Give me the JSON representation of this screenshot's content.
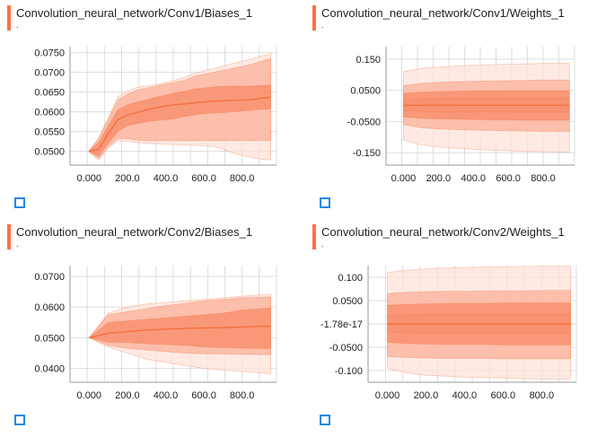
{
  "colors": {
    "accent": "#ff7043",
    "band_light": "#fde3da",
    "band_mid": "#fbb49e",
    "band_dark": "#f7916f",
    "median": "#f4703f",
    "grid": "#dddddd",
    "expand_icon": "#1e88e5"
  },
  "panels": [
    {
      "title": "Convolution_neural_network/Conv1/Biases_1",
      "subtitle": ".",
      "expand_icon": "fullscreen-icon",
      "x_ticks": [
        "0.000",
        "200.0",
        "400.0",
        "600.0",
        "800.0"
      ],
      "y_ticks": [
        "0.0750",
        "0.0700",
        "0.0650",
        "0.0600",
        "0.0550",
        "0.0500"
      ],
      "x_tick_values": [
        0,
        200,
        400,
        600,
        800
      ],
      "y_tick_values": [
        0.075,
        0.07,
        0.065,
        0.06,
        0.055,
        0.05
      ]
    },
    {
      "title": "Convolution_neural_network/Conv1/Weights_1",
      "subtitle": ".",
      "expand_icon": "fullscreen-icon",
      "x_ticks": [
        "0.000",
        "200.0",
        "400.0",
        "600.0",
        "800.0"
      ],
      "y_ticks": [
        "0.150",
        "0.0500",
        "-0.0500",
        "-0.150"
      ],
      "x_tick_values": [
        0,
        200,
        400,
        600,
        800
      ],
      "y_tick_values": [
        0.15,
        0.05,
        -0.05,
        -0.15
      ]
    },
    {
      "title": "Convolution_neural_network/Conv2/Biases_1",
      "subtitle": ".",
      "expand_icon": "fullscreen-icon",
      "x_ticks": [
        "0.000",
        "200.0",
        "400.0",
        "600.0",
        "800.0"
      ],
      "y_ticks": [
        "0.0700",
        "0.0600",
        "0.0500",
        "0.0400"
      ],
      "x_tick_values": [
        0,
        200,
        400,
        600,
        800
      ],
      "y_tick_values": [
        0.07,
        0.06,
        0.05,
        0.04
      ]
    },
    {
      "title": "Convolution_neural_network/Conv2/Weights_1",
      "subtitle": ".",
      "expand_icon": "fullscreen-icon",
      "x_ticks": [
        "0.000",
        "200.0",
        "400.0",
        "600.0",
        "800.0"
      ],
      "y_ticks": [
        "0.100",
        "0.0500",
        "-1.78e-17",
        "-0.0500",
        "-0.100"
      ],
      "x_tick_values": [
        0,
        200,
        400,
        600,
        800
      ],
      "y_tick_values": [
        0.1,
        0.05,
        0,
        -0.05,
        -0.1
      ]
    }
  ],
  "chart_data": [
    {
      "type": "area",
      "title": "Convolution_neural_network/Conv1/Biases_1",
      "x": [
        0,
        50,
        100,
        150,
        200,
        250,
        300,
        350,
        400,
        450,
        500,
        550,
        600,
        650,
        700,
        750,
        800,
        850,
        900,
        950
      ],
      "ylim": [
        0.0465,
        0.0765
      ],
      "xlim": [
        -100,
        980
      ],
      "bands": [
        {
          "name": "",
          "lower": [
            0.0498,
            0.0478,
            0.0508,
            0.0527,
            0.0525,
            0.0522,
            0.052,
            0.0519,
            0.0518,
            0.0517,
            0.0516,
            0.0515,
            0.0514,
            0.0512,
            0.0505,
            0.0496,
            0.0489,
            0.0484,
            0.048,
            0.0478
          ],
          "upper": [
            0.0502,
            0.0535,
            0.0585,
            0.0638,
            0.0653,
            0.0662,
            0.0666,
            0.0669,
            0.0675,
            0.068,
            0.0688,
            0.0697,
            0.0703,
            0.071,
            0.0716,
            0.0722,
            0.0728,
            0.0734,
            0.0741,
            0.0748
          ]
        },
        {
          "name": "",
          "lower": [
            0.0499,
            0.0482,
            0.0512,
            0.0532,
            0.0532,
            0.0528,
            0.0527,
            0.0527,
            0.0527,
            0.0527,
            0.0527,
            0.0527,
            0.0527,
            0.0527,
            0.0527,
            0.0527,
            0.0527,
            0.0527,
            0.0527,
            0.0527
          ],
          "upper": [
            0.0501,
            0.053,
            0.058,
            0.063,
            0.0645,
            0.0655,
            0.066,
            0.0665,
            0.067,
            0.0675,
            0.068,
            0.069,
            0.0695,
            0.07,
            0.0705,
            0.071,
            0.0715,
            0.072,
            0.0728,
            0.0735
          ]
        },
        {
          "name": "",
          "lower": [
            0.0499,
            0.0488,
            0.052,
            0.055,
            0.0565,
            0.057,
            0.0575,
            0.0578,
            0.058,
            0.0583,
            0.0588,
            0.0592,
            0.0595,
            0.0597,
            0.0598,
            0.06,
            0.0602,
            0.0604,
            0.0606,
            0.0608
          ],
          "upper": [
            0.0501,
            0.0522,
            0.0565,
            0.0605,
            0.0618,
            0.0625,
            0.063,
            0.0637,
            0.0642,
            0.0648,
            0.0652,
            0.0658,
            0.066,
            0.0663,
            0.0665,
            0.0665,
            0.0665,
            0.0665,
            0.0667,
            0.0668
          ]
        }
      ],
      "median": [
        0.05,
        0.0505,
        0.0545,
        0.058,
        0.0592,
        0.0598,
        0.0605,
        0.061,
        0.0615,
        0.0618,
        0.062,
        0.0623,
        0.0625,
        0.0627,
        0.0628,
        0.0629,
        0.063,
        0.0631,
        0.0634,
        0.0637
      ]
    },
    {
      "type": "area",
      "title": "Convolution_neural_network/Conv1/Weights_1",
      "x": [
        0,
        100,
        200,
        300,
        400,
        500,
        600,
        700,
        800,
        900,
        950
      ],
      "ylim": [
        -0.19,
        0.19
      ],
      "xlim": [
        -100,
        980
      ],
      "bands": [
        {
          "name": "",
          "lower": [
            -0.11,
            -0.125,
            -0.132,
            -0.136,
            -0.139,
            -0.142,
            -0.144,
            -0.146,
            -0.147,
            -0.148,
            -0.148
          ],
          "upper": [
            0.11,
            0.12,
            0.125,
            0.128,
            0.13,
            0.132,
            0.134,
            0.135,
            0.136,
            0.137,
            0.137
          ]
        },
        {
          "name": "",
          "lower": [
            -0.06,
            -0.07,
            -0.074,
            -0.076,
            -0.078,
            -0.079,
            -0.08,
            -0.081,
            -0.082,
            -0.082,
            -0.082
          ],
          "upper": [
            0.065,
            0.072,
            0.076,
            0.078,
            0.079,
            0.08,
            0.081,
            0.082,
            0.083,
            0.083,
            0.083
          ]
        },
        {
          "name": "",
          "lower": [
            -0.035,
            -0.04,
            -0.042,
            -0.043,
            -0.044,
            -0.045,
            -0.045,
            -0.046,
            -0.046,
            -0.046,
            -0.046
          ],
          "upper": [
            0.04,
            0.044,
            0.046,
            0.047,
            0.048,
            0.048,
            0.049,
            0.049,
            0.049,
            0.049,
            0.049
          ]
        },
        {
          "name": "",
          "lower": [
            -0.015,
            -0.018,
            -0.019,
            -0.02,
            -0.02,
            -0.02,
            -0.02,
            -0.02,
            -0.02,
            -0.02,
            -0.02
          ],
          "upper": [
            0.02,
            0.022,
            0.023,
            0.024,
            0.024,
            0.024,
            0.024,
            0.024,
            0.024,
            0.024,
            0.024
          ]
        }
      ],
      "median": [
        0.002,
        0.002,
        0.002,
        0.002,
        0.002,
        0.002,
        0.002,
        0.002,
        0.002,
        0.002,
        0.002
      ]
    },
    {
      "type": "area",
      "title": "Convolution_neural_network/Conv2/Biases_1",
      "x": [
        0,
        100,
        200,
        300,
        400,
        500,
        600,
        700,
        800,
        900,
        950
      ],
      "ylim": [
        0.0355,
        0.0735
      ],
      "xlim": [
        -100,
        980
      ],
      "bands": [
        {
          "name": "",
          "lower": [
            0.05,
            0.047,
            0.045,
            0.043,
            0.042,
            0.041,
            0.04,
            0.0395,
            0.039,
            0.0385,
            0.0383
          ],
          "upper": [
            0.05,
            0.058,
            0.06,
            0.061,
            0.0615,
            0.062,
            0.0625,
            0.063,
            0.0635,
            0.064,
            0.0642
          ]
        },
        {
          "name": "",
          "lower": [
            0.05,
            0.0475,
            0.0465,
            0.046,
            0.0455,
            0.045,
            0.0448,
            0.0447,
            0.0446,
            0.0445,
            0.0445
          ],
          "upper": [
            0.05,
            0.0575,
            0.0585,
            0.0595,
            0.0605,
            0.0612,
            0.062,
            0.0625,
            0.063,
            0.0632,
            0.0633
          ]
        },
        {
          "name": "",
          "lower": [
            0.05,
            0.0485,
            0.0485,
            0.048,
            0.0478,
            0.0475,
            0.047,
            0.0468,
            0.0466,
            0.0465,
            0.0465
          ],
          "upper": [
            0.05,
            0.055,
            0.0555,
            0.056,
            0.0565,
            0.057,
            0.0575,
            0.058,
            0.059,
            0.0595,
            0.0597
          ]
        }
      ],
      "median": [
        0.05,
        0.0515,
        0.052,
        0.0525,
        0.0528,
        0.053,
        0.0532,
        0.0533,
        0.0535,
        0.0537,
        0.0538
      ]
    },
    {
      "type": "area",
      "title": "Convolution_neural_network/Conv2/Weights_1",
      "x": [
        0,
        100,
        200,
        300,
        400,
        500,
        600,
        700,
        800,
        900,
        950
      ],
      "ylim": [
        -0.125,
        0.125
      ],
      "xlim": [
        -100,
        980
      ],
      "bands": [
        {
          "name": "",
          "lower": [
            -0.095,
            -0.105,
            -0.11,
            -0.112,
            -0.114,
            -0.115,
            -0.116,
            -0.117,
            -0.118,
            -0.118,
            -0.118
          ],
          "upper": [
            0.11,
            0.115,
            0.118,
            0.12,
            0.121,
            0.122,
            0.123,
            0.123,
            0.124,
            0.124,
            0.124
          ]
        },
        {
          "name": "",
          "lower": [
            -0.07,
            -0.072,
            -0.073,
            -0.074,
            -0.074,
            -0.074,
            -0.075,
            -0.075,
            -0.075,
            -0.075,
            -0.075
          ],
          "upper": [
            0.065,
            0.068,
            0.069,
            0.07,
            0.07,
            0.071,
            0.071,
            0.071,
            0.072,
            0.072,
            0.072
          ]
        },
        {
          "name": "",
          "lower": [
            -0.04,
            -0.042,
            -0.043,
            -0.044,
            -0.044,
            -0.044,
            -0.045,
            -0.045,
            -0.045,
            -0.045,
            -0.045
          ],
          "upper": [
            0.04,
            0.042,
            0.043,
            0.044,
            0.044,
            0.044,
            0.045,
            0.045,
            0.045,
            0.045,
            0.045
          ]
        },
        {
          "name": "",
          "lower": [
            -0.018,
            -0.019,
            -0.02,
            -0.02,
            -0.02,
            -0.02,
            -0.02,
            -0.02,
            -0.02,
            -0.02,
            -0.02
          ],
          "upper": [
            0.018,
            0.019,
            0.02,
            0.02,
            0.02,
            0.02,
            0.02,
            0.02,
            0.02,
            0.02,
            0.02
          ]
        }
      ],
      "median": [
        0,
        0,
        0,
        0,
        0,
        0,
        0,
        0,
        0,
        0,
        0
      ]
    }
  ]
}
